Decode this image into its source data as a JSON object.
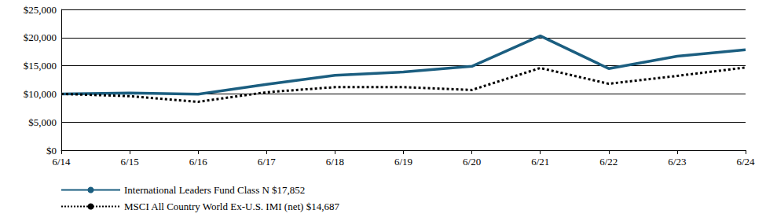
{
  "chart_data": {
    "type": "line",
    "categories": [
      "6/14",
      "6/15",
      "6/16",
      "6/17",
      "6/18",
      "6/19",
      "6/20",
      "6/21",
      "6/22",
      "6/23",
      "6/24"
    ],
    "series": [
      {
        "name": "International Leaders Fund Class N $17,852",
        "color": "#1b5e80",
        "line_style": "solid",
        "marker": "none",
        "values": [
          10000,
          10150,
          9950,
          11700,
          13300,
          13900,
          14900,
          20300,
          14500,
          16700,
          17852
        ]
      },
      {
        "name": "MSCI All Country World Ex-U.S. IMI (net) $14,687",
        "color": "#000000",
        "line_style": "dotted",
        "marker": "none",
        "values": [
          10000,
          9600,
          8600,
          10300,
          11200,
          11200,
          10700,
          14600,
          11800,
          13200,
          14687
        ]
      }
    ],
    "ylim": [
      0,
      25000
    ],
    "yticks": [
      {
        "value": 0,
        "label": "$0"
      },
      {
        "value": 5000,
        "label": "$5,000"
      },
      {
        "value": 10000,
        "label": "$10,000"
      },
      {
        "value": 15000,
        "label": "$15,000"
      },
      {
        "value": 20000,
        "label": "$20,000"
      },
      {
        "value": 25000,
        "label": "$25,000"
      }
    ],
    "grid": true,
    "legend": "bottom-left"
  }
}
